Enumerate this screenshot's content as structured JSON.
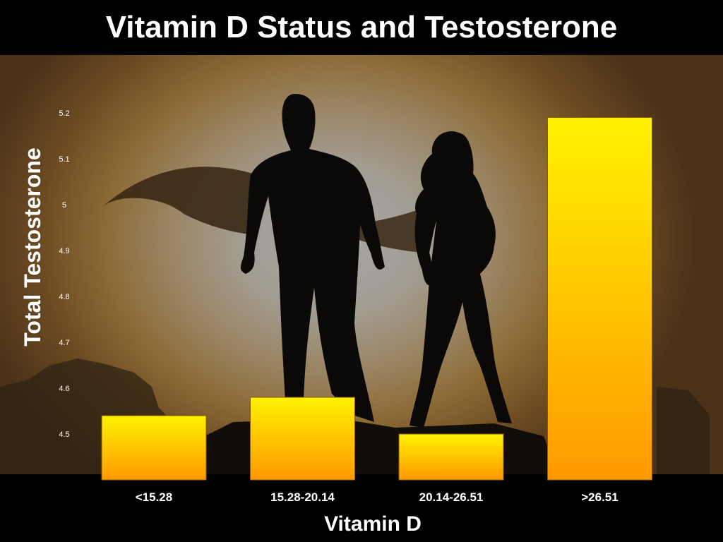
{
  "chart_data": {
    "type": "bar",
    "title": "Vitamin D Status and Testosterone",
    "xlabel": "Vitamin D",
    "ylabel": "Total Testosterone",
    "categories": [
      "<15.28",
      "15.28-20.14",
      "20.14-26.51",
      ">26.51"
    ],
    "values": [
      4.54,
      4.58,
      4.5,
      5.19
    ],
    "ylim": [
      4.4,
      5.2
    ],
    "yticks": [
      "4.5",
      "4.6",
      "4.7",
      "4.8",
      "4.9",
      "5",
      "5.1",
      "5.2"
    ],
    "grid": false,
    "legend": "none",
    "colors": {
      "bar_top": "#fff200",
      "bar_bottom": "#ff9900"
    }
  }
}
